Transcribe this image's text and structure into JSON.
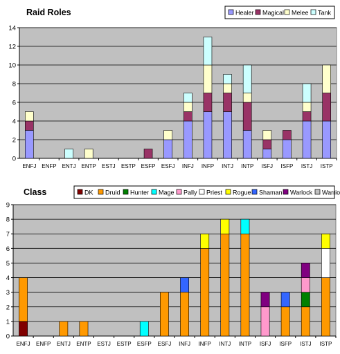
{
  "chart_data": [
    {
      "id": "raid",
      "type": "bar",
      "stacked": true,
      "title": "Raid Roles",
      "xlabel": "",
      "ylabel": "",
      "ylim": [
        0,
        14
      ],
      "ytick_step": 2,
      "grid": true,
      "legend_position": "top-right",
      "categories": [
        "ENFJ",
        "ENFP",
        "ENTJ",
        "ENTP",
        "ESTJ",
        "ESTP",
        "ESFP",
        "ESFJ",
        "INFJ",
        "INFP",
        "INTJ",
        "INTP",
        "ISFJ",
        "ISFP",
        "ISTJ",
        "ISTP"
      ],
      "series": [
        {
          "name": "Healer",
          "color": "#9999ff",
          "values": [
            3,
            0,
            0,
            0,
            0,
            0,
            0,
            2,
            4,
            5,
            5,
            3,
            1,
            2,
            4,
            4
          ]
        },
        {
          "name": "Magical",
          "color": "#993366",
          "values": [
            1,
            0,
            0,
            0,
            0,
            0,
            1,
            0,
            1,
            2,
            2,
            3,
            1,
            1,
            1,
            3
          ]
        },
        {
          "name": "Melee",
          "color": "#ffffcc",
          "values": [
            1,
            0,
            0,
            1,
            0,
            0,
            0,
            1,
            1,
            3,
            1,
            1,
            1,
            0,
            1,
            3
          ]
        },
        {
          "name": "Tank",
          "color": "#ccffff",
          "values": [
            0,
            0,
            1,
            0,
            0,
            0,
            0,
            0,
            1,
            3,
            1,
            3,
            0,
            0,
            2,
            0
          ]
        }
      ]
    },
    {
      "id": "class",
      "type": "bar",
      "stacked": true,
      "title": "Class",
      "xlabel": "",
      "ylabel": "",
      "ylim": [
        0,
        9
      ],
      "ytick_step": 1,
      "grid": true,
      "legend_position": "top-right",
      "categories": [
        "ENFJ",
        "ENFP",
        "ENTJ",
        "ENTP",
        "ESTJ",
        "ESTP",
        "ESFP",
        "ESFJ",
        "INFJ",
        "INFP",
        "INTJ",
        "INTP",
        "ISFJ",
        "ISFP",
        "ISTJ",
        "ISTP"
      ],
      "series": [
        {
          "name": "DK",
          "color": "#800000",
          "values": [
            1,
            0,
            0,
            0,
            0,
            0,
            0,
            0,
            0,
            0,
            0,
            0,
            0,
            0,
            0,
            0
          ]
        },
        {
          "name": "Druid",
          "color": "#ff9900",
          "values": [
            3,
            0,
            1,
            1,
            0,
            0,
            0,
            3,
            3,
            6,
            7,
            7,
            0,
            2,
            2,
            4
          ]
        },
        {
          "name": "Hunter",
          "color": "#008000",
          "values": [
            0,
            0,
            0,
            0,
            0,
            0,
            0,
            0,
            0,
            0,
            0,
            0,
            0,
            0,
            1,
            0
          ]
        },
        {
          "name": "Mage",
          "color": "#00ffff",
          "values": [
            0,
            0,
            0,
            0,
            0,
            0,
            1,
            0,
            0,
            0,
            0,
            1,
            0,
            0,
            0,
            0
          ]
        },
        {
          "name": "Pally",
          "color": "#ff99cc",
          "values": [
            0,
            0,
            0,
            0,
            0,
            0,
            0,
            0,
            0,
            0,
            0,
            0,
            2,
            0,
            1,
            0
          ]
        },
        {
          "name": "Priest",
          "color": "#ffffff",
          "values": [
            0,
            0,
            0,
            0,
            0,
            0,
            0,
            0,
            0,
            0,
            0,
            0,
            0,
            0,
            0,
            2
          ]
        },
        {
          "name": "Rogue",
          "color": "#ffff00",
          "values": [
            0,
            0,
            0,
            0,
            0,
            0,
            0,
            0,
            0,
            1,
            1,
            0,
            0,
            0,
            0,
            1
          ]
        },
        {
          "name": "Shaman",
          "color": "#3366ff",
          "values": [
            0,
            0,
            0,
            0,
            0,
            0,
            0,
            0,
            1,
            0,
            0,
            0,
            0,
            1,
            0,
            0
          ]
        },
        {
          "name": "Warlock",
          "color": "#800080",
          "values": [
            0,
            0,
            0,
            0,
            0,
            0,
            0,
            0,
            0,
            0,
            0,
            0,
            1,
            0,
            1,
            0
          ]
        },
        {
          "name": "Warrior",
          "color": "#c0c0c0",
          "values": [
            0,
            0,
            0,
            0,
            0,
            0,
            0,
            0,
            0,
            0,
            0,
            0,
            0,
            0,
            0,
            0
          ]
        }
      ]
    }
  ]
}
